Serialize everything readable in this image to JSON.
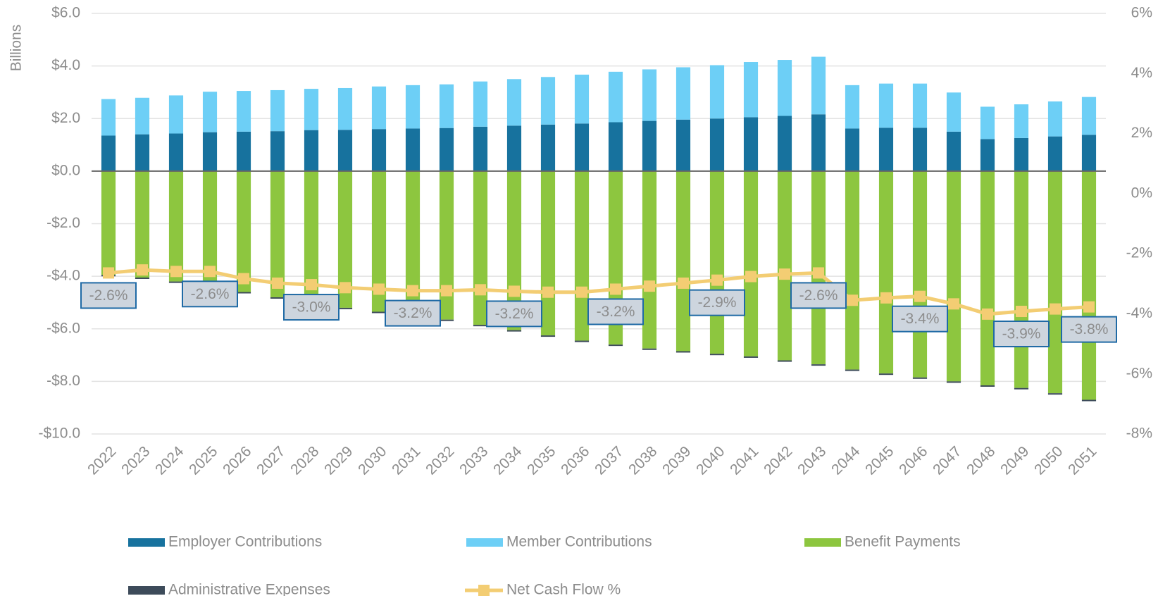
{
  "chart_data": {
    "type": "bar",
    "y_label": "Billions",
    "categories": [
      "2022",
      "2023",
      "2024",
      "2025",
      "2026",
      "2027",
      "2028",
      "2029",
      "2030",
      "2031",
      "2032",
      "2033",
      "2034",
      "2035",
      "2036",
      "2037",
      "2038",
      "2039",
      "2040",
      "2041",
      "2042",
      "2043",
      "2044",
      "2045",
      "2046",
      "2047",
      "2048",
      "2049",
      "2050",
      "2051"
    ],
    "series": [
      {
        "name": "Employer Contributions",
        "color": "#17729e",
        "stack": "pos",
        "values": [
          1.35,
          1.4,
          1.43,
          1.48,
          1.5,
          1.52,
          1.56,
          1.57,
          1.6,
          1.62,
          1.64,
          1.69,
          1.73,
          1.77,
          1.81,
          1.86,
          1.91,
          1.96,
          2.0,
          2.05,
          2.1,
          2.16,
          1.62,
          1.65,
          1.65,
          1.5,
          1.22,
          1.26,
          1.32,
          1.38
        ]
      },
      {
        "name": "Member Contributions",
        "color": "#6dcff6",
        "stack": "pos",
        "values": [
          1.39,
          1.39,
          1.45,
          1.54,
          1.55,
          1.56,
          1.57,
          1.59,
          1.62,
          1.65,
          1.66,
          1.72,
          1.77,
          1.81,
          1.86,
          1.92,
          1.96,
          1.99,
          2.03,
          2.1,
          2.13,
          2.19,
          1.65,
          1.68,
          1.68,
          1.49,
          1.23,
          1.28,
          1.33,
          1.44
        ]
      },
      {
        "name": "Benefit Payments",
        "color": "#8dc63f",
        "stack": "neg",
        "values": [
          -3.95,
          -4.05,
          -4.2,
          -4.4,
          -4.6,
          -4.8,
          -5.0,
          -5.2,
          -5.35,
          -5.5,
          -5.65,
          -5.85,
          -6.05,
          -6.25,
          -6.45,
          -6.6,
          -6.75,
          -6.85,
          -6.95,
          -7.05,
          -7.2,
          -7.35,
          -7.55,
          -7.7,
          -7.85,
          -8.0,
          -8.15,
          -8.25,
          -8.45,
          -8.7
        ]
      },
      {
        "name": "Administrative Expenses",
        "color": "#3d4b5a",
        "stack": "neg",
        "values": [
          -0.05,
          -0.05,
          -0.05,
          -0.05,
          -0.05,
          -0.05,
          -0.05,
          -0.05,
          -0.05,
          -0.05,
          -0.05,
          -0.05,
          -0.05,
          -0.05,
          -0.05,
          -0.05,
          -0.05,
          -0.05,
          -0.05,
          -0.05,
          -0.05,
          -0.05,
          -0.05,
          -0.05,
          -0.05,
          -0.05,
          -0.05,
          -0.05,
          -0.05,
          -0.05
        ]
      },
      {
        "name": "Net Cash Flow %",
        "color": "#f3cd73",
        "type": "line",
        "axis": "y2",
        "values": [
          -2.64,
          -2.54,
          -2.59,
          -2.59,
          -2.83,
          -2.98,
          -3.03,
          -3.13,
          -3.18,
          -3.23,
          -3.23,
          -3.2,
          -3.25,
          -3.28,
          -3.28,
          -3.18,
          -3.08,
          -2.98,
          -2.88,
          -2.76,
          -2.68,
          -2.64,
          -3.55,
          -3.47,
          -3.42,
          -3.67,
          -4.01,
          -3.92,
          -3.84,
          -3.77
        ],
        "value_labels": [
          "-2.6%",
          null,
          null,
          "-2.6%",
          null,
          null,
          "-3.0%",
          null,
          null,
          "-3.2%",
          null,
          null,
          "-3.2%",
          null,
          null,
          "-3.2%",
          null,
          null,
          "-2.9%",
          null,
          null,
          "-2.6%",
          null,
          null,
          "-3.4%",
          null,
          null,
          "-3.9%",
          null,
          "-3.8%"
        ]
      }
    ],
    "ylim": [
      -10,
      6
    ],
    "yticks": [
      {
        "value": 6,
        "label": "$6.0"
      },
      {
        "value": 4,
        "label": "$4.0"
      },
      {
        "value": 2,
        "label": "$2.0"
      },
      {
        "value": 0,
        "label": "$0.0"
      },
      {
        "value": -2,
        "label": "-$2.0"
      },
      {
        "value": -4,
        "label": "-$4.0"
      },
      {
        "value": -6,
        "label": "-$6.0"
      },
      {
        "value": -8,
        "label": "-$8.0"
      },
      {
        "value": -10,
        "label": "-$10.0"
      }
    ],
    "y2lim": [
      -8,
      6
    ],
    "y2ticks": [
      {
        "value": 6,
        "label": "6%"
      },
      {
        "value": 4,
        "label": "4%"
      },
      {
        "value": 2,
        "label": "2%"
      },
      {
        "value": 0,
        "label": "0%"
      },
      {
        "value": -2,
        "label": "-2%"
      },
      {
        "value": -4,
        "label": "-4%"
      },
      {
        "value": -6,
        "label": "-6%"
      },
      {
        "value": -8,
        "label": "-8%"
      }
    ],
    "grid": true,
    "legend": "bottom"
  }
}
